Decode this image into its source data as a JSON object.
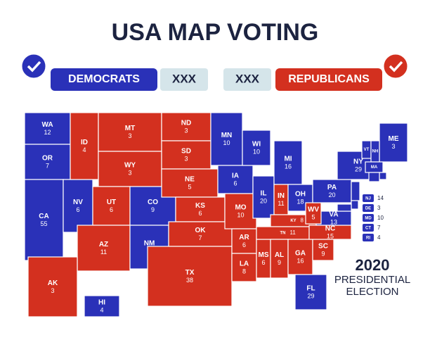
{
  "header": {
    "title": "USA MAP VOTING",
    "left_label": "DEMOCRATS",
    "left_score": "XXX",
    "right_score": "XXX",
    "right_label": "REPUBLICANS"
  },
  "colors": {
    "democrat": "#2a31b8",
    "republican": "#d3301f",
    "score_box": "#d5e5ea"
  },
  "states": [
    {
      "abbr": "WA",
      "votes": 12,
      "color": "#2a31b8"
    },
    {
      "abbr": "OR",
      "votes": 7,
      "color": "#2a31b8"
    },
    {
      "abbr": "CA",
      "votes": 55,
      "color": "#2a31b8"
    },
    {
      "abbr": "NV",
      "votes": 6,
      "color": "#2a31b8"
    },
    {
      "abbr": "ID",
      "votes": 4,
      "color": "#d3301f"
    },
    {
      "abbr": "MT",
      "votes": 3,
      "color": "#d3301f"
    },
    {
      "abbr": "WY",
      "votes": 3,
      "color": "#d3301f"
    },
    {
      "abbr": "UT",
      "votes": 6,
      "color": "#d3301f"
    },
    {
      "abbr": "AZ",
      "votes": 11,
      "color": "#d3301f"
    },
    {
      "abbr": "CO",
      "votes": 9,
      "color": "#2a31b8"
    },
    {
      "abbr": "NM",
      "votes": 5,
      "color": "#2a31b8"
    },
    {
      "abbr": "ND",
      "votes": 3,
      "color": "#d3301f"
    },
    {
      "abbr": "SD",
      "votes": 3,
      "color": "#d3301f"
    },
    {
      "abbr": "NE",
      "votes": 5,
      "color": "#d3301f"
    },
    {
      "abbr": "KS",
      "votes": 6,
      "color": "#d3301f"
    },
    {
      "abbr": "OK",
      "votes": 7,
      "color": "#d3301f"
    },
    {
      "abbr": "TX",
      "votes": 38,
      "color": "#d3301f"
    },
    {
      "abbr": "MN",
      "votes": 10,
      "color": "#2a31b8"
    },
    {
      "abbr": "IA",
      "votes": 6,
      "color": "#2a31b8"
    },
    {
      "abbr": "MO",
      "votes": 10,
      "color": "#d3301f"
    },
    {
      "abbr": "AR",
      "votes": 6,
      "color": "#d3301f"
    },
    {
      "abbr": "LA",
      "votes": 8,
      "color": "#d3301f"
    },
    {
      "abbr": "WI",
      "votes": 10,
      "color": "#2a31b8"
    },
    {
      "abbr": "IL",
      "votes": 20,
      "color": "#2a31b8"
    },
    {
      "abbr": "MS",
      "votes": 6,
      "color": "#d3301f"
    },
    {
      "abbr": "MI",
      "votes": 16,
      "color": "#2a31b8"
    },
    {
      "abbr": "IN",
      "votes": 11,
      "color": "#d3301f"
    },
    {
      "abbr": "KY",
      "votes": 8,
      "color": "#d3301f"
    },
    {
      "abbr": "TN",
      "votes": 11,
      "color": "#d3301f"
    },
    {
      "abbr": "AL",
      "votes": 9,
      "color": "#d3301f"
    },
    {
      "abbr": "OH",
      "votes": 18,
      "color": "#2a31b8"
    },
    {
      "abbr": "GA",
      "votes": 16,
      "color": "#d3301f"
    },
    {
      "abbr": "FL",
      "votes": 29,
      "color": "#2a31b8"
    },
    {
      "abbr": "SC",
      "votes": 9,
      "color": "#d3301f"
    },
    {
      "abbr": "NC",
      "votes": 15,
      "color": "#d3301f"
    },
    {
      "abbr": "VA",
      "votes": 13,
      "color": "#2a31b8"
    },
    {
      "abbr": "WV",
      "votes": 5,
      "color": "#d3301f"
    },
    {
      "abbr": "PA",
      "votes": 20,
      "color": "#2a31b8"
    },
    {
      "abbr": "NY",
      "votes": 29,
      "color": "#2a31b8"
    },
    {
      "abbr": "ME",
      "votes": 3,
      "color": "#2a31b8"
    },
    {
      "abbr": "VT",
      "color": "#2a31b8"
    },
    {
      "abbr": "NH",
      "color": "#2a31b8"
    },
    {
      "abbr": "MA",
      "color": "#2a31b8"
    },
    {
      "abbr": "RI",
      "votes": 4,
      "color": "#2a31b8"
    },
    {
      "abbr": "CT",
      "votes": 7,
      "color": "#2a31b8"
    },
    {
      "abbr": "NJ",
      "votes": 14,
      "color": "#2a31b8"
    },
    {
      "abbr": "DE",
      "votes": 3,
      "color": "#2a31b8"
    },
    {
      "abbr": "MD",
      "votes": 10,
      "color": "#2a31b8"
    },
    {
      "abbr": "AK",
      "votes": 3,
      "color": "#d3301f"
    },
    {
      "abbr": "HI",
      "votes": 4,
      "color": "#2a31b8"
    }
  ],
  "footer": {
    "year": "2020",
    "line1": "PRESIDENTIAL",
    "line2": "ELECTION"
  }
}
